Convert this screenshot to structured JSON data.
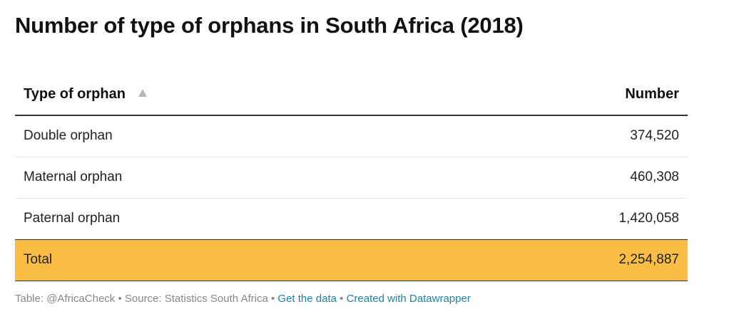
{
  "title": "Number of type of orphans in South Africa (2018)",
  "table": {
    "header_type": "Type of orphan",
    "header_number": "Number"
  },
  "footer": {
    "credit": "Table: @AfricaCheck",
    "source": "Source: Statistics South Africa",
    "get_data": "Get the data",
    "created_with": "Created with Datawrapper",
    "separator": " • "
  },
  "colors": {
    "total_row": "#fbbd43",
    "link": "#1d81a2"
  },
  "chart_data": {
    "type": "table",
    "title": "Number of type of orphans in South Africa (2018)",
    "columns": [
      "Type of orphan",
      "Number"
    ],
    "rows": [
      {
        "label": "Double orphan",
        "value": 374520,
        "display": "374,520"
      },
      {
        "label": "Maternal orphan",
        "value": 460308,
        "display": "460,308"
      },
      {
        "label": "Paternal orphan",
        "value": 1420058,
        "display": "1,420,058"
      }
    ],
    "total": {
      "label": "Total",
      "value": 2254887,
      "display": "2,254,887"
    },
    "sort": {
      "column": "Type of orphan",
      "direction": "ascending"
    }
  }
}
